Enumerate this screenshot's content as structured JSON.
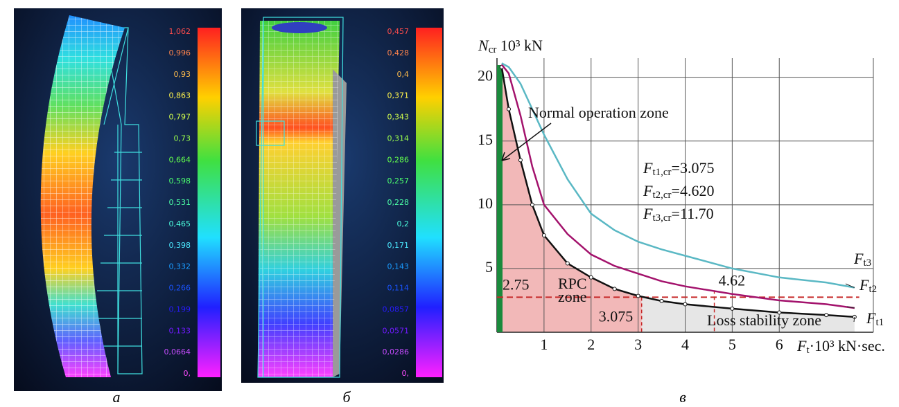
{
  "panels": [
    {
      "caption": "а",
      "scale_labels": [
        "1,062",
        "0,996",
        "0,93",
        "0,863",
        "0,797",
        "0,73",
        "0,664",
        "0,598",
        "0,531",
        "0,465",
        "0,398",
        "0,332",
        "0,266",
        "0,199",
        "0,133",
        "0,0664",
        "0,"
      ]
    },
    {
      "caption": "б",
      "scale_labels": [
        "0,457",
        "0,428",
        "0,4",
        "0,371",
        "0,343",
        "0,314",
        "0,286",
        "0,257",
        "0,228",
        "0,2",
        "0,171",
        "0,143",
        "0,114",
        "0,0857",
        "0,0571",
        "0,0286",
        "0,"
      ]
    }
  ],
  "chart_data": {
    "type": "line",
    "caption": "в",
    "y_label": "Ncr 10³ kN",
    "x_label": "Ft·10³ kN·sec.",
    "xlim": [
      0,
      8
    ],
    "ylim": [
      0,
      21.5
    ],
    "xticks": [
      1,
      2,
      3,
      4,
      5,
      6
    ],
    "yticks": [
      5,
      10,
      15,
      20
    ],
    "grid": true,
    "x": [
      0.1,
      0.25,
      0.5,
      0.75,
      1,
      1.5,
      2,
      2.5,
      3,
      3.5,
      4,
      5,
      6,
      7,
      7.6
    ],
    "series": [
      {
        "name": "Ft1",
        "color": "#111111",
        "values": [
          20.8,
          17.5,
          13.5,
          10,
          7.6,
          5.4,
          4.3,
          3.4,
          2.85,
          2.45,
          2.2,
          1.85,
          1.55,
          1.35,
          1.2
        ]
      },
      {
        "name": "Ft2",
        "color": "#a3126c",
        "values": [
          21,
          20.3,
          17,
          13,
          10,
          7.7,
          6.1,
          5.2,
          4.6,
          4.0,
          3.6,
          3.0,
          2.5,
          2.2,
          1.9
        ]
      },
      {
        "name": "Ft3",
        "color": "#5ab8c4",
        "values": [
          21.1,
          20.8,
          19.5,
          17.5,
          15.5,
          12,
          9.3,
          8.0,
          7.1,
          6.5,
          6.0,
          5.0,
          4.3,
          3.9,
          3.5
        ]
      }
    ],
    "hlines": [
      {
        "value": 2.75,
        "label": "2.75"
      }
    ],
    "vlines": [
      {
        "value": 3.075,
        "label": "3.075"
      },
      {
        "value": 4.62,
        "label": "4.62"
      }
    ],
    "annotations": [
      "Normal operation zone",
      "Ft1,cr=3.075",
      "Ft2,cr=4.620",
      "Ft3,cr=11.70",
      "RPC",
      "zone",
      "Loss stability zone"
    ]
  }
}
